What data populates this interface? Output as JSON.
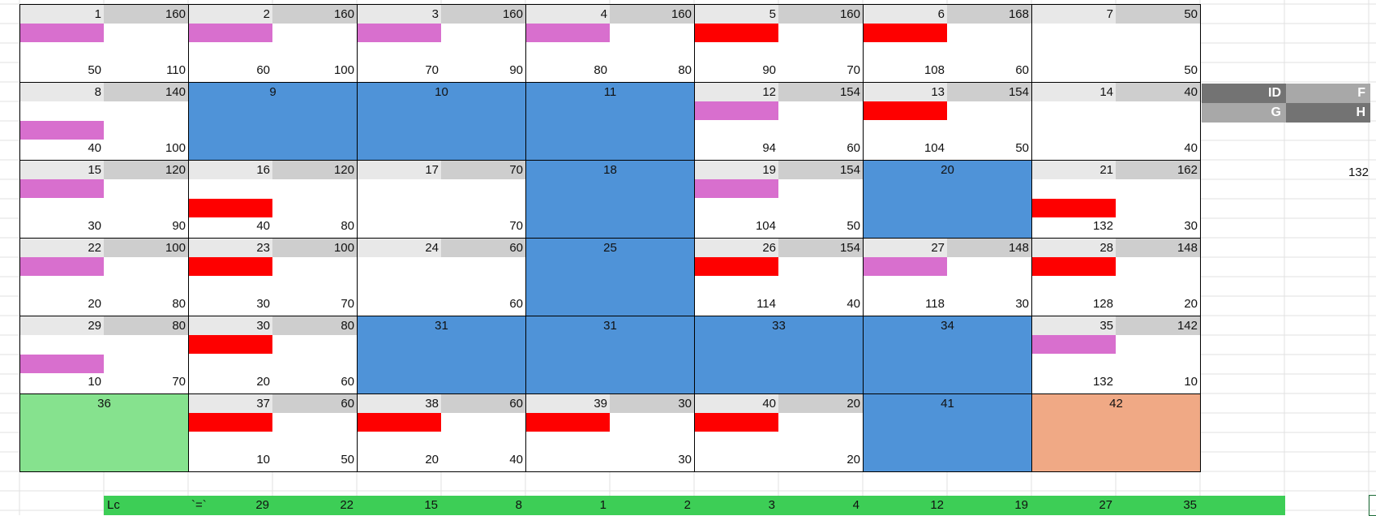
{
  "grid": {
    "rows": [
      [
        {
          "id": "1",
          "top_right": "160",
          "bar": "pink",
          "bar_row": 1,
          "bottom_left": "50",
          "bottom_right": "110"
        },
        {
          "id": "2",
          "top_right": "160",
          "bar": "pink",
          "bar_row": 1,
          "bottom_left": "60",
          "bottom_right": "100"
        },
        {
          "id": "3",
          "top_right": "160",
          "bar": "pink",
          "bar_row": 1,
          "bottom_left": "70",
          "bottom_right": "90"
        },
        {
          "id": "4",
          "top_right": "160",
          "bar": "pink",
          "bar_row": 1,
          "bottom_left": "80",
          "bottom_right": "80"
        },
        {
          "id": "5",
          "top_right": "160",
          "bar": "red",
          "bar_row": 1,
          "bottom_left": "90",
          "bottom_right": "70"
        },
        {
          "id": "6",
          "top_right": "168",
          "bar": "red",
          "bar_row": 1,
          "bottom_left": "108",
          "bottom_right": "60"
        },
        {
          "id": "7",
          "top_right": "50",
          "bar": "",
          "bottom_left": "",
          "bottom_right": "50"
        }
      ],
      [
        {
          "id": "8",
          "top_right": "140",
          "bar": "pink",
          "bar_row": 2,
          "bottom_left": "40",
          "bottom_right": "100"
        },
        {
          "id": "9",
          "fill": "blue"
        },
        {
          "id": "10",
          "fill": "blue"
        },
        {
          "id": "11",
          "fill": "blue"
        },
        {
          "id": "12",
          "top_right": "154",
          "bar": "pink",
          "bar_row": 1,
          "bottom_left": "94",
          "bottom_right": "60"
        },
        {
          "id": "13",
          "top_right": "154",
          "bar": "red",
          "bar_row": 1,
          "bottom_left": "104",
          "bottom_right": "50"
        },
        {
          "id": "14",
          "top_right": "40",
          "bar": "",
          "bottom_left": "",
          "bottom_right": "40"
        }
      ],
      [
        {
          "id": "15",
          "top_right": "120",
          "bar": "pink",
          "bar_row": 1,
          "bottom_left": "30",
          "bottom_right": "90"
        },
        {
          "id": "16",
          "top_right": "120",
          "bar": "red",
          "bar_row": 2,
          "bottom_left": "40",
          "bottom_right": "80"
        },
        {
          "id": "17",
          "top_right": "70",
          "bar": "",
          "bottom_left": "",
          "bottom_right": "70"
        },
        {
          "id": "18",
          "fill": "blue"
        },
        {
          "id": "19",
          "top_right": "154",
          "bar": "pink",
          "bar_row": 1,
          "bottom_left": "104",
          "bottom_right": "50"
        },
        {
          "id": "20",
          "fill": "blue"
        },
        {
          "id": "21",
          "top_right": "162",
          "bar": "red",
          "bar_row": 2,
          "bottom_left": "132",
          "bottom_right": "30"
        }
      ],
      [
        {
          "id": "22",
          "top_right": "100",
          "bar": "pink",
          "bar_row": 1,
          "bottom_left": "20",
          "bottom_right": "80"
        },
        {
          "id": "23",
          "top_right": "100",
          "bar": "red",
          "bar_row": 1,
          "bottom_left": "30",
          "bottom_right": "70"
        },
        {
          "id": "24",
          "top_right": "60",
          "bar": "",
          "bottom_left": "",
          "bottom_right": "60"
        },
        {
          "id": "25",
          "fill": "blue"
        },
        {
          "id": "26",
          "top_right": "154",
          "bar": "red",
          "bar_row": 1,
          "bottom_left": "114",
          "bottom_right": "40"
        },
        {
          "id": "27",
          "top_right": "148",
          "bar": "pink",
          "bar_row": 1,
          "bottom_left": "118",
          "bottom_right": "30"
        },
        {
          "id": "28",
          "top_right": "148",
          "bar": "red",
          "bar_row": 1,
          "bottom_left": "128",
          "bottom_right": "20"
        }
      ],
      [
        {
          "id": "29",
          "top_right": "80",
          "bar": "pink",
          "bar_row": 2,
          "bottom_left": "10",
          "bottom_right": "70"
        },
        {
          "id": "30",
          "top_right": "80",
          "bar": "red",
          "bar_row": 1,
          "bottom_left": "20",
          "bottom_right": "60"
        },
        {
          "id": "31",
          "fill": "blue"
        },
        {
          "id": "31",
          "fill": "blue"
        },
        {
          "id": "33",
          "fill": "blue"
        },
        {
          "id": "34",
          "fill": "blue"
        },
        {
          "id": "35",
          "top_right": "142",
          "bar": "pink",
          "bar_row": 1,
          "bottom_left": "132",
          "bottom_right": "10"
        }
      ],
      [
        {
          "id": "36",
          "fill": "green"
        },
        {
          "id": "37",
          "top_right": "60",
          "bar": "red",
          "bar_row": 1,
          "bottom_left": "10",
          "bottom_right": "50"
        },
        {
          "id": "38",
          "top_right": "60",
          "bar": "red",
          "bar_row": 1,
          "bottom_left": "20",
          "bottom_right": "40"
        },
        {
          "id": "39",
          "top_right": "30",
          "bar": "red",
          "bar_row": 1,
          "bottom_left": "",
          "bottom_right": "30"
        },
        {
          "id": "40",
          "top_right": "20",
          "bar": "red",
          "bar_row": 1,
          "bottom_left": "",
          "bottom_right": "20"
        },
        {
          "id": "41",
          "fill": "blue"
        },
        {
          "id": "42",
          "fill": "orange"
        }
      ]
    ]
  },
  "colors": {
    "header_light": "#e8e8e8",
    "header_dark": "#cecece",
    "pink_bar": "#d86fce",
    "red_bar": "#fe0000",
    "blue_fill": "#4f93d8",
    "green_fill": "#86e28e",
    "orange_fill": "#f0a985",
    "footer_green": "#3dce56",
    "legend_dark": "#737373",
    "legend_light": "#a8a8a8"
  },
  "legend": {
    "id": "ID",
    "f": "F",
    "g": "G",
    "h": "H"
  },
  "side_value": "132",
  "footer": {
    "label": "Lc",
    "formula": "`=`",
    "values": [
      "29",
      "22",
      "15",
      "8",
      "1",
      "2",
      "3",
      "4",
      "12",
      "19",
      "27",
      "35"
    ]
  }
}
